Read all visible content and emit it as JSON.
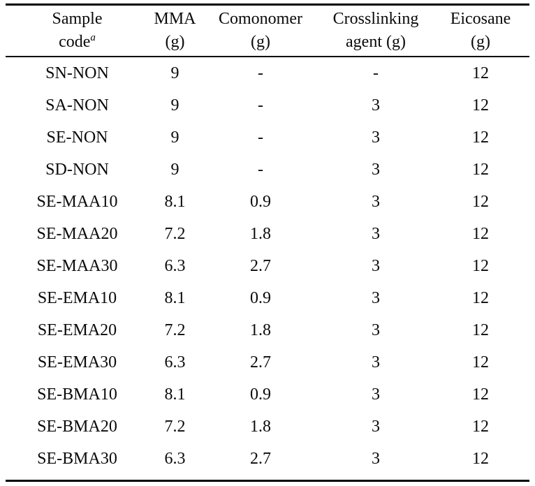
{
  "table": {
    "header": [
      {
        "line1": "Sample",
        "line2": "code",
        "sup": "a"
      },
      {
        "line1": "MMA",
        "line2": "(g)",
        "sup": ""
      },
      {
        "line1": "Comonomer",
        "line2": "(g)",
        "sup": ""
      },
      {
        "line1": "Crosslinking",
        "line2": "agent (g)",
        "sup": ""
      },
      {
        "line1": "Eicosane",
        "line2": "(g)",
        "sup": ""
      }
    ],
    "rows": [
      {
        "sample_code": "SN-NON",
        "mma": "9",
        "comonomer": "-",
        "crosslinking_agent": "-",
        "eicosane": "12"
      },
      {
        "sample_code": "SA-NON",
        "mma": "9",
        "comonomer": "-",
        "crosslinking_agent": "3",
        "eicosane": "12"
      },
      {
        "sample_code": "SE-NON",
        "mma": "9",
        "comonomer": "-",
        "crosslinking_agent": "3",
        "eicosane": "12"
      },
      {
        "sample_code": "SD-NON",
        "mma": "9",
        "comonomer": "-",
        "crosslinking_agent": "3",
        "eicosane": "12"
      },
      {
        "sample_code": "SE-MAA10",
        "mma": "8.1",
        "comonomer": "0.9",
        "crosslinking_agent": "3",
        "eicosane": "12"
      },
      {
        "sample_code": "SE-MAA20",
        "mma": "7.2",
        "comonomer": "1.8",
        "crosslinking_agent": "3",
        "eicosane": "12"
      },
      {
        "sample_code": "SE-MAA30",
        "mma": "6.3",
        "comonomer": "2.7",
        "crosslinking_agent": "3",
        "eicosane": "12"
      },
      {
        "sample_code": "SE-EMA10",
        "mma": "8.1",
        "comonomer": "0.9",
        "crosslinking_agent": "3",
        "eicosane": "12"
      },
      {
        "sample_code": "SE-EMA20",
        "mma": "7.2",
        "comonomer": "1.8",
        "crosslinking_agent": "3",
        "eicosane": "12"
      },
      {
        "sample_code": "SE-EMA30",
        "mma": "6.3",
        "comonomer": "2.7",
        "crosslinking_agent": "3",
        "eicosane": "12"
      },
      {
        "sample_code": "SE-BMA10",
        "mma": "8.1",
        "comonomer": "0.9",
        "crosslinking_agent": "3",
        "eicosane": "12"
      },
      {
        "sample_code": "SE-BMA20",
        "mma": "7.2",
        "comonomer": "1.8",
        "crosslinking_agent": "3",
        "eicosane": "12"
      },
      {
        "sample_code": "SE-BMA30",
        "mma": "6.3",
        "comonomer": "2.7",
        "crosslinking_agent": "3",
        "eicosane": "12"
      }
    ]
  },
  "colors": {
    "text": "#0a0a0a",
    "rule": "#000000",
    "background": "#ffffff"
  }
}
